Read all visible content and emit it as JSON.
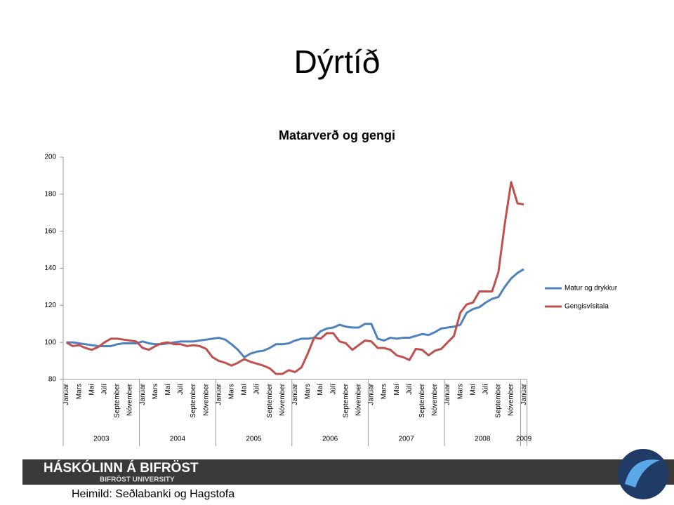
{
  "slide_title": "Dýrtíð",
  "footer": "Heimild: Seðlabanki og Hagstofa",
  "logo": {
    "name": "HÁSKÓLINN Á BIFRÖST",
    "subtitle": "BIFRÖST UNIVERSITY"
  },
  "chart_data": {
    "type": "line",
    "title": "Matarverð og gengi",
    "categories": [
      "Janúar",
      null,
      "Mars",
      null,
      "Maí",
      null,
      "Júlí",
      null,
      "September",
      null,
      "Nóvember",
      null,
      "Janúar",
      null,
      "Mars",
      null,
      "Maí",
      null,
      "Júlí",
      null,
      "September",
      null,
      "Nóvember",
      null,
      "Janúar",
      null,
      "Mars",
      null,
      "Maí",
      null,
      "Júlí",
      null,
      "September",
      null,
      "Nóvember",
      null,
      "Janúar",
      null,
      "Mars",
      null,
      "Maí",
      null,
      "Júlí",
      null,
      "September",
      null,
      "Nóvember",
      null,
      "Janúar",
      null,
      "Mars",
      null,
      "Maí",
      null,
      "Júlí",
      null,
      "September",
      null,
      "Nóvember",
      null,
      "Janúar",
      null,
      "Mars",
      null,
      "Maí",
      null,
      "Júlí",
      null,
      "September",
      null,
      "Nóvember",
      null,
      "Janúar"
    ],
    "years": [
      "2003",
      "2004",
      "2005",
      "2006",
      "2007",
      "2008",
      "2009"
    ],
    "series": [
      {
        "name": "Matur og drykkur",
        "color": "#4f81bd",
        "values": [
          100,
          100,
          99.5,
          99,
          98.5,
          98,
          98,
          98,
          99,
          99.5,
          99.5,
          99.5,
          100.5,
          99.5,
          99,
          99,
          99.5,
          100,
          100.5,
          100.5,
          100.5,
          101,
          101.5,
          102,
          102.5,
          101.5,
          99,
          96,
          92,
          94,
          95,
          95.5,
          97,
          99,
          99,
          99.5,
          101,
          102,
          102,
          102.5,
          106,
          107.5,
          108,
          109.5,
          108.5,
          108,
          108,
          110,
          110,
          102,
          101,
          102.5,
          102,
          102.5,
          102.5,
          103.5,
          104.5,
          104,
          105.5,
          107.5,
          108,
          108.5,
          109.5,
          116,
          118,
          119,
          121.5,
          123.5,
          124.5,
          130,
          134.5,
          137.5,
          139.5
        ]
      },
      {
        "name": "Gengisvísitala",
        "color": "#c0504d",
        "values": [
          100,
          98,
          98.5,
          97,
          96,
          97.5,
          100,
          102,
          102,
          101.5,
          101,
          100.5,
          97,
          96,
          98,
          99.5,
          100,
          99,
          99,
          98,
          98.5,
          98,
          96.5,
          92,
          90,
          89,
          87.5,
          89,
          91,
          89.5,
          88.5,
          87.5,
          86,
          83,
          83,
          85,
          84,
          86.5,
          94,
          102.5,
          102,
          105,
          105,
          100.5,
          99.5,
          96,
          98.5,
          101,
          100.5,
          97,
          97,
          96,
          93,
          92,
          90.5,
          96.5,
          96,
          93,
          95.5,
          96.5,
          100,
          103.5,
          116,
          120.5,
          121.5,
          127.5,
          127.5,
          127.5,
          138,
          164,
          186.5,
          175,
          174.5
        ]
      }
    ],
    "ylim": [
      80,
      200
    ],
    "yticks": [
      80,
      100,
      120,
      140,
      160,
      180,
      200
    ],
    "grid": false,
    "legend": "right"
  }
}
